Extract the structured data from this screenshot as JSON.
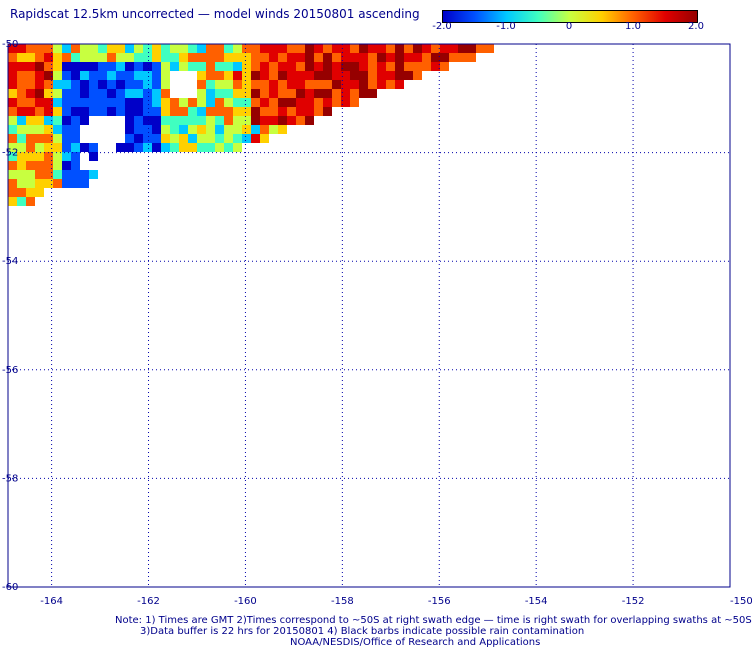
{
  "title": "Rapidscat 12.5km uncorrected — model winds 20150801 ascending",
  "colorbar": {
    "labels": [
      "-2.0",
      "-1.0",
      "0",
      "1.0",
      "2.0"
    ],
    "values": [
      -2.0,
      -1.0,
      0,
      1.0,
      2.0
    ],
    "range": [
      -2.0,
      2.0
    ],
    "colors": [
      "#0000c8",
      "#0050ff",
      "#00c8ff",
      "#40ffc0",
      "#c8ff40",
      "#ffd000",
      "#ff6000",
      "#e00000",
      "#960000"
    ]
  },
  "map": {
    "lat_ticks": [
      -50,
      -52,
      -54,
      -56,
      -58,
      -60
    ],
    "lat_labels": [
      "-50",
      "-52",
      "-54",
      "-56",
      "-58",
      "-60"
    ],
    "lon_ticks": [
      -164,
      -162,
      -160,
      -158,
      -156,
      -154,
      -152,
      -150
    ],
    "lon_labels": [
      "-164",
      "-162",
      "-160",
      "-158",
      "-156",
      "-154",
      "-152",
      "-150"
    ],
    "lon_range": [
      -164.9,
      -150
    ],
    "lat_range": [
      -60,
      -50
    ],
    "grid": "dotted",
    "gridline_color": "#0000aa"
  },
  "notes": {
    "line1": "Note: 1) Times are GMT 2)Times correspond to ~50S at right swath edge — time is right swath for overlapping swaths at ~50S",
    "line2": "3)Data buffer is 22 hrs for 20150801 4) Black barbs indicate possible rain contamination",
    "line3": "NOAA/NESDIS/Office of Research and Applications"
  }
}
